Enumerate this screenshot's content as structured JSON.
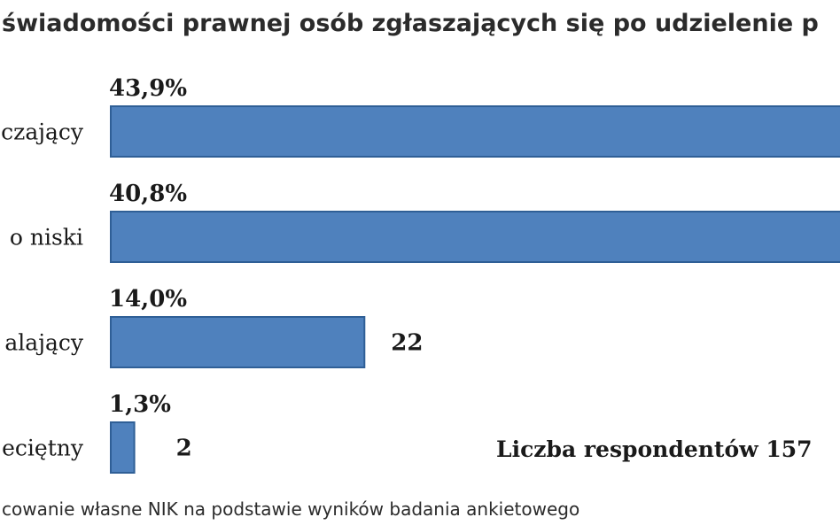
{
  "chart_data": {
    "type": "bar",
    "orientation": "horizontal",
    "title": "świadomości prawnej osób zgłaszających się po udzielenie p",
    "categories": [
      "czający",
      "o niski",
      "alający",
      "eciętny"
    ],
    "values": [
      43.9,
      40.8,
      14.0,
      1.3
    ],
    "value_labels": [
      "43,9%",
      "40,8%",
      "14,0%",
      "1,3%"
    ],
    "counts": [
      null,
      null,
      22,
      2
    ],
    "count_labels": [
      "",
      "",
      "22",
      "2"
    ],
    "respondents_label": "Liczba respondentów 157",
    "source": "cowanie własne NIK na podstawie wyników badania ankietowego",
    "colors": {
      "bar": "#4f81bd",
      "bar_edge": "#2f5f96",
      "text": "#1a1a1a"
    },
    "grid": false,
    "legend": "none"
  }
}
